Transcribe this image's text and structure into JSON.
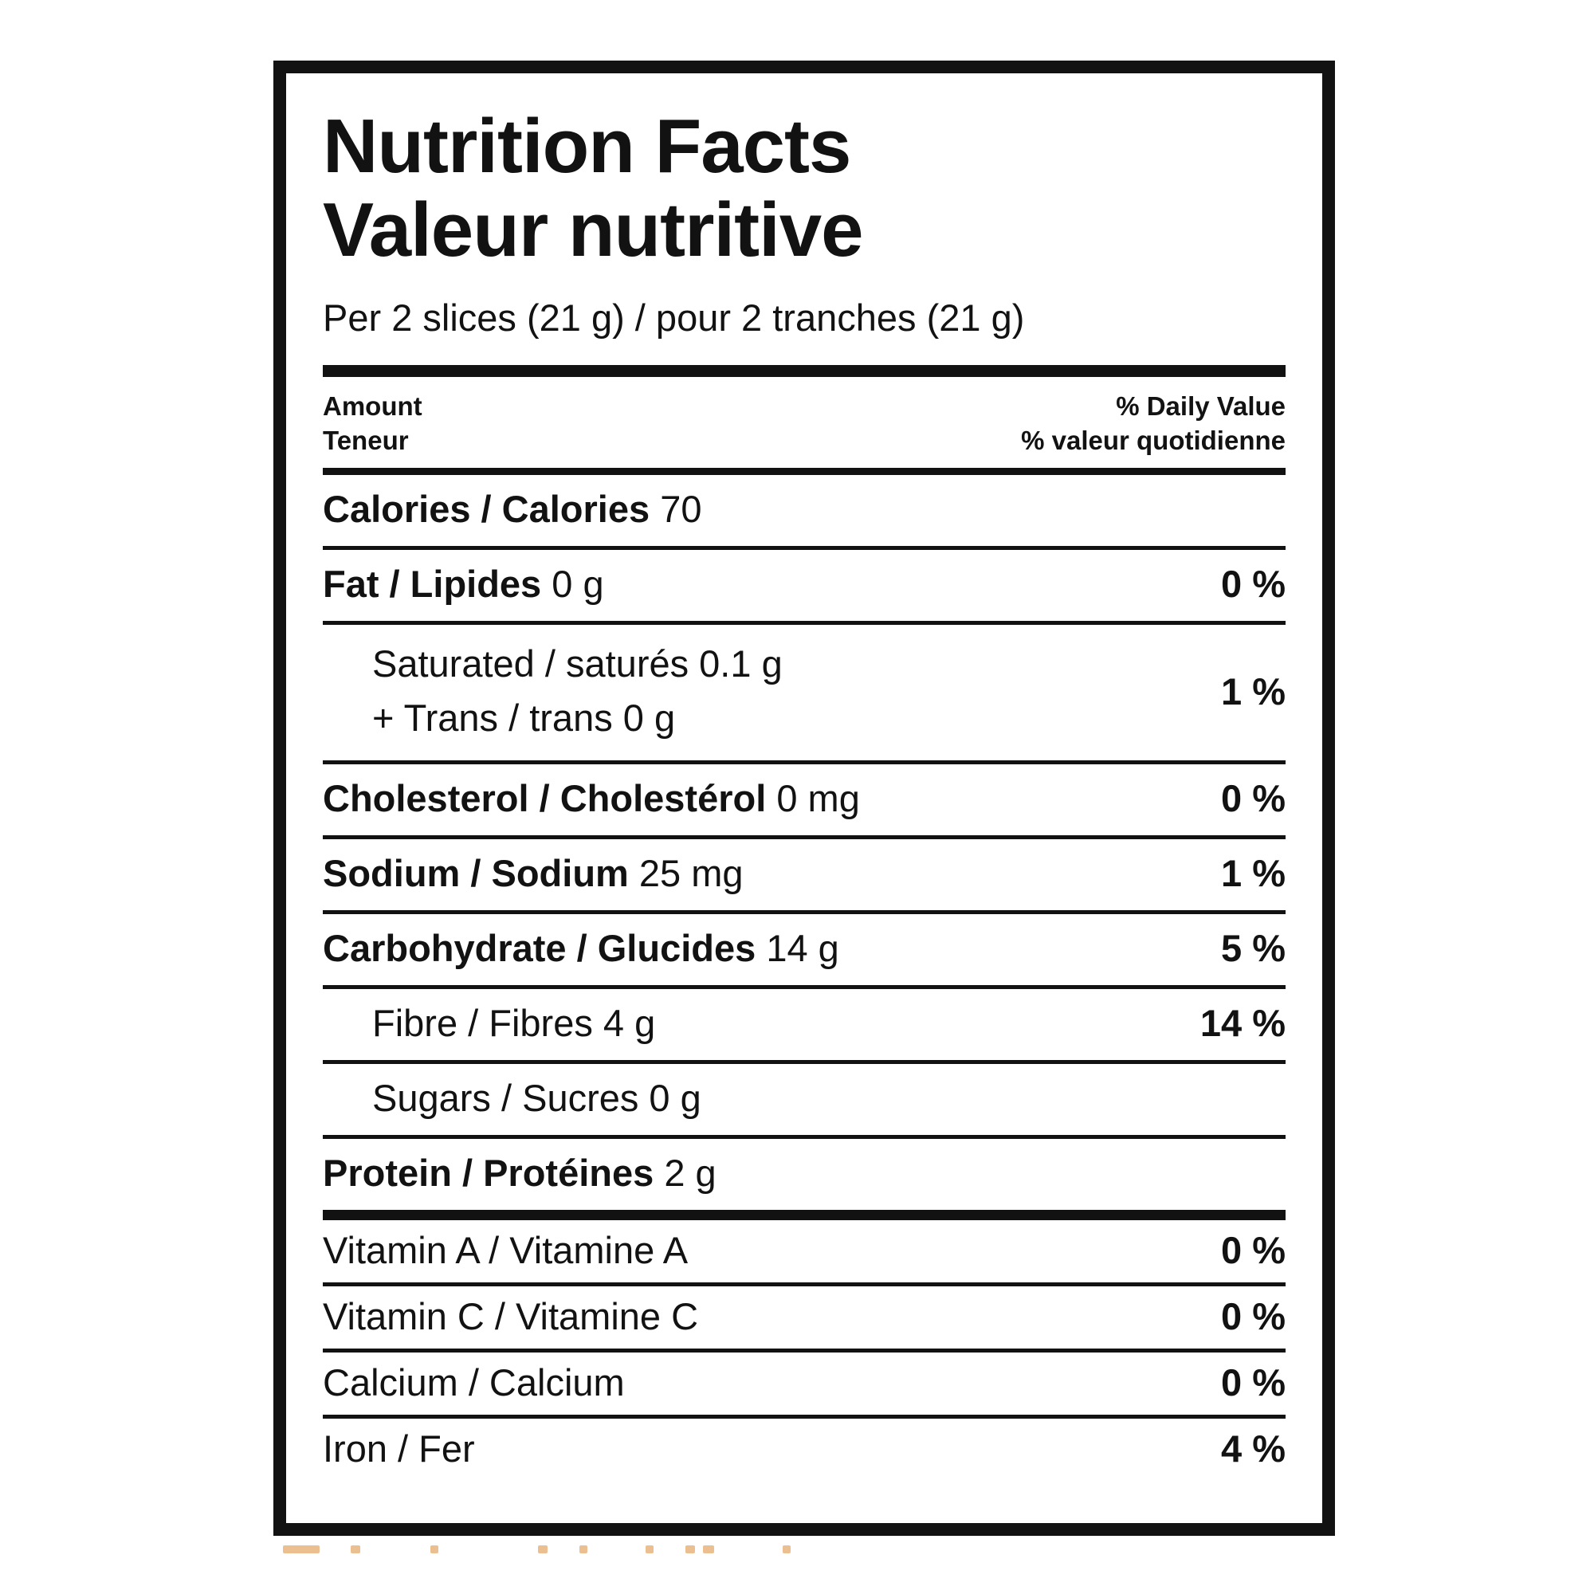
{
  "label": {
    "ink_color": "#121212",
    "title_en": "Nutrition Facts",
    "title_fr": "Valeur nutritive",
    "serving_line": "Per 2 slices (21 g) / pour 2 tranches (21 g)",
    "column_headers": {
      "amount_en": "Amount",
      "amount_fr": "Teneur",
      "daily_value_en": "% Daily Value",
      "daily_value_fr": "% valeur quotidienne"
    },
    "rows": [
      {
        "label": "Calories / Calories",
        "amount": "70",
        "percent": "",
        "bold": true,
        "indent": false,
        "divider_after": "thin"
      },
      {
        "label": "Fat / Lipides",
        "amount": "0 g",
        "percent": "0 %",
        "bold": true,
        "indent": false,
        "divider_after": "thin"
      },
      {
        "lines": [
          "Saturated / saturés 0.1 g",
          "+ Trans / trans 0 g"
        ],
        "amount": "",
        "percent": "1 %",
        "bold": false,
        "indent": true,
        "divider_after": "thin"
      },
      {
        "label": "Cholesterol / Cholestérol",
        "amount": "0 mg",
        "percent": "0 %",
        "bold": true,
        "indent": false,
        "divider_after": "thin"
      },
      {
        "label": "Sodium / Sodium",
        "amount": "25 mg",
        "percent": "1 %",
        "bold": true,
        "indent": false,
        "divider_after": "thin"
      },
      {
        "label": "Carbohydrate / Glucides",
        "amount": "14 g",
        "percent": "5 %",
        "bold": true,
        "indent": false,
        "divider_after": "thin"
      },
      {
        "label": "Fibre / Fibres",
        "amount": "4 g",
        "percent": "14 %",
        "bold": false,
        "indent": true,
        "divider_after": "thin"
      },
      {
        "label": "Sugars / Sucres",
        "amount": "0 g",
        "percent": "",
        "bold": false,
        "indent": true,
        "divider_after": "thin"
      },
      {
        "label": "Protein / Protéines",
        "amount": "2 g",
        "percent": "",
        "bold": true,
        "indent": false,
        "divider_after": "heavy"
      },
      {
        "label": "Vitamin A / Vitamine A",
        "amount": "",
        "percent": "0 %",
        "bold": false,
        "indent": false,
        "vitamin": true,
        "divider_after": "thin"
      },
      {
        "label": "Vitamin C / Vitamine C",
        "amount": "",
        "percent": "0 %",
        "bold": false,
        "indent": false,
        "vitamin": true,
        "divider_after": "thin"
      },
      {
        "label": "Calcium / Calcium",
        "amount": "",
        "percent": "0 %",
        "bold": false,
        "indent": false,
        "vitamin": true,
        "divider_after": "thin"
      },
      {
        "label": "Iron / Fer",
        "amount": "",
        "percent": "4 %",
        "bold": false,
        "indent": false,
        "vitamin": true,
        "divider_after": "none"
      }
    ],
    "cutoff_fragment_color": "#e9b47c"
  }
}
